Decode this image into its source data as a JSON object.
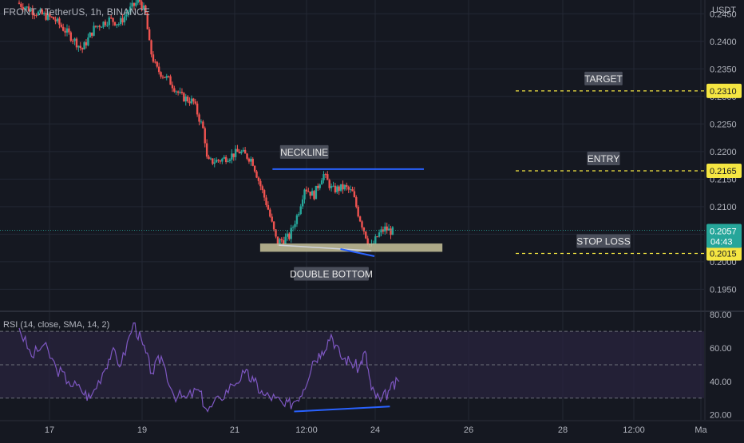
{
  "header": {
    "symbol_title": "FRONT / TetherUS, 1h, BINANCE",
    "currency": "USDT"
  },
  "colors": {
    "background": "#151821",
    "grid": "#232734",
    "text": "#b2b5be",
    "candle_up": "#26a69a",
    "candle_down": "#ef5350",
    "neckline": "#2962ff",
    "zone": "#c8c39a",
    "dashed": "#f5e642",
    "rsi_line": "#7e57c2",
    "rsi_band": "#2a2440"
  },
  "chart_data": [
    {
      "type": "candlestick",
      "series_name": "FRONT / TetherUS, 1h, BINANCE",
      "ylim": [
        0.191,
        0.2475
      ],
      "y_ticks": [
        "0.2450",
        "0.2400",
        "0.2350",
        "0.2300",
        "0.2250",
        "0.2200",
        "0.2150",
        "0.2100",
        "0.2050",
        "0.2000",
        "0.1950"
      ],
      "x_ticks": [
        "17",
        "19",
        "21",
        "12:00",
        "24",
        "26",
        "28",
        "12:00",
        "Ma"
      ],
      "price_path": [
        [
          0,
          0.247
        ],
        [
          0.5,
          0.2455
        ],
        [
          1.2,
          0.244
        ],
        [
          1.8,
          0.2405
        ],
        [
          2.1,
          0.2385
        ],
        [
          2.5,
          0.2425
        ],
        [
          3.0,
          0.244
        ],
        [
          3.3,
          0.2432
        ],
        [
          3.6,
          0.2455
        ],
        [
          3.95,
          0.2475
        ],
        [
          4.15,
          0.245
        ],
        [
          4.3,
          0.2385
        ],
        [
          4.5,
          0.235
        ],
        [
          4.9,
          0.233
        ],
        [
          5.3,
          0.23
        ],
        [
          5.7,
          0.229
        ],
        [
          6.05,
          0.2235
        ],
        [
          6.15,
          0.218
        ],
        [
          6.6,
          0.2185
        ],
        [
          7.2,
          0.22
        ],
        [
          7.6,
          0.2185
        ],
        [
          7.8,
          0.215
        ],
        [
          8.1,
          0.21
        ],
        [
          8.4,
          0.2035
        ],
        [
          8.8,
          0.2045
        ],
        [
          9.1,
          0.209
        ],
        [
          9.3,
          0.2135
        ],
        [
          9.6,
          0.212
        ],
        [
          9.9,
          0.216
        ],
        [
          10.2,
          0.213
        ],
        [
          10.6,
          0.2135
        ],
        [
          10.85,
          0.2125
        ],
        [
          11.05,
          0.2085
        ],
        [
          11.3,
          0.2045
        ],
        [
          11.45,
          0.2025
        ],
        [
          11.7,
          0.205
        ],
        [
          11.9,
          0.206
        ],
        [
          12.1,
          0.2055
        ]
      ],
      "last_price": "0.2057",
      "countdown": "04:43",
      "annotations": {
        "target": {
          "label": "TARGET",
          "price": 0.231,
          "price_label": "0.2310"
        },
        "entry": {
          "label": "ENTRY",
          "price": 0.2165,
          "price_label": "0.2165"
        },
        "stop_loss": {
          "label": "STOP LOSS",
          "price": 0.2015,
          "price_label": "0.2015"
        },
        "neckline": {
          "label": "NECKLINE",
          "x": [
            8.2,
            13.1
          ],
          "price": 0.2168
        },
        "double_bottom": {
          "label": "DOUBLE BOTTOM",
          "x": [
            7.8,
            13.7
          ],
          "price_top": 0.2033,
          "price_bottom": 0.2018
        }
      }
    },
    {
      "type": "line",
      "title": "RSI (14, close, SMA, 14, 2)",
      "ylim": [
        17,
        82
      ],
      "y_ticks": [
        "80.00",
        "60.00",
        "40.00",
        "20.00"
      ],
      "band": [
        30,
        70
      ],
      "series": [
        {
          "name": "RSI",
          "points": [
            [
              0,
              72
            ],
            [
              0.4,
              55
            ],
            [
              0.8,
              62
            ],
            [
              1.2,
              48
            ],
            [
              1.6,
              40
            ],
            [
              2.0,
              35
            ],
            [
              2.3,
              30
            ],
            [
              2.7,
              45
            ],
            [
              3.0,
              58
            ],
            [
              3.3,
              50
            ],
            [
              3.7,
              75
            ],
            [
              4.0,
              62
            ],
            [
              4.3,
              45
            ],
            [
              4.6,
              55
            ],
            [
              5.0,
              32
            ],
            [
              5.4,
              30
            ],
            [
              5.8,
              35
            ],
            [
              6.1,
              22
            ],
            [
              6.5,
              30
            ],
            [
              6.9,
              38
            ],
            [
              7.3,
              45
            ],
            [
              7.6,
              40
            ],
            [
              7.9,
              32
            ],
            [
              8.3,
              30
            ],
            [
              8.6,
              25
            ],
            [
              8.9,
              28
            ],
            [
              9.2,
              35
            ],
            [
              9.5,
              52
            ],
            [
              9.8,
              58
            ],
            [
              10.1,
              68
            ],
            [
              10.4,
              55
            ],
            [
              10.7,
              52
            ],
            [
              11.0,
              48
            ],
            [
              11.2,
              58
            ],
            [
              11.4,
              35
            ],
            [
              11.7,
              28
            ],
            [
              12.0,
              35
            ],
            [
              12.3,
              40
            ]
          ]
        }
      ],
      "divergence": {
        "x": [
          8.9,
          12.0
        ],
        "y": [
          22,
          25
        ]
      }
    }
  ]
}
